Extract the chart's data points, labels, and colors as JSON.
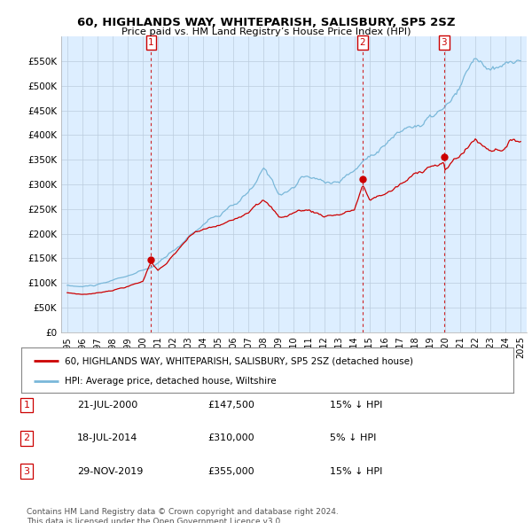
{
  "title": "60, HIGHLANDS WAY, WHITEPARISH, SALISBURY, SP5 2SZ",
  "subtitle": "Price paid vs. HM Land Registry’s House Price Index (HPI)",
  "ylim": [
    0,
    600000
  ],
  "yticks": [
    0,
    50000,
    100000,
    150000,
    200000,
    250000,
    300000,
    350000,
    400000,
    450000,
    500000,
    550000
  ],
  "hpi_color": "#7ab8d9",
  "sale_color": "#cc0000",
  "vline_color": "#cc0000",
  "bg_chart": "#ddeeff",
  "sale_points": [
    {
      "year": 2000.55,
      "value": 147500,
      "label": "1"
    },
    {
      "year": 2014.54,
      "value": 310000,
      "label": "2"
    },
    {
      "year": 2019.92,
      "value": 355000,
      "label": "3"
    }
  ],
  "legend_entries": [
    {
      "color": "#cc0000",
      "label": "60, HIGHLANDS WAY, WHITEPARISH, SALISBURY, SP5 2SZ (detached house)"
    },
    {
      "color": "#7ab8d9",
      "label": "HPI: Average price, detached house, Wiltshire"
    }
  ],
  "table_rows": [
    {
      "num": "1",
      "date": "21-JUL-2000",
      "price": "£147,500",
      "hpi": "15% ↓ HPI"
    },
    {
      "num": "2",
      "date": "18-JUL-2014",
      "price": "£310,000",
      "hpi": "5% ↓ HPI"
    },
    {
      "num": "3",
      "date": "29-NOV-2019",
      "price": "£355,000",
      "hpi": "15% ↓ HPI"
    }
  ],
  "footnote": "Contains HM Land Registry data © Crown copyright and database right 2024.\nThis data is licensed under the Open Government Licence v3.0.",
  "background_color": "#ffffff",
  "grid_color": "#bbccdd"
}
